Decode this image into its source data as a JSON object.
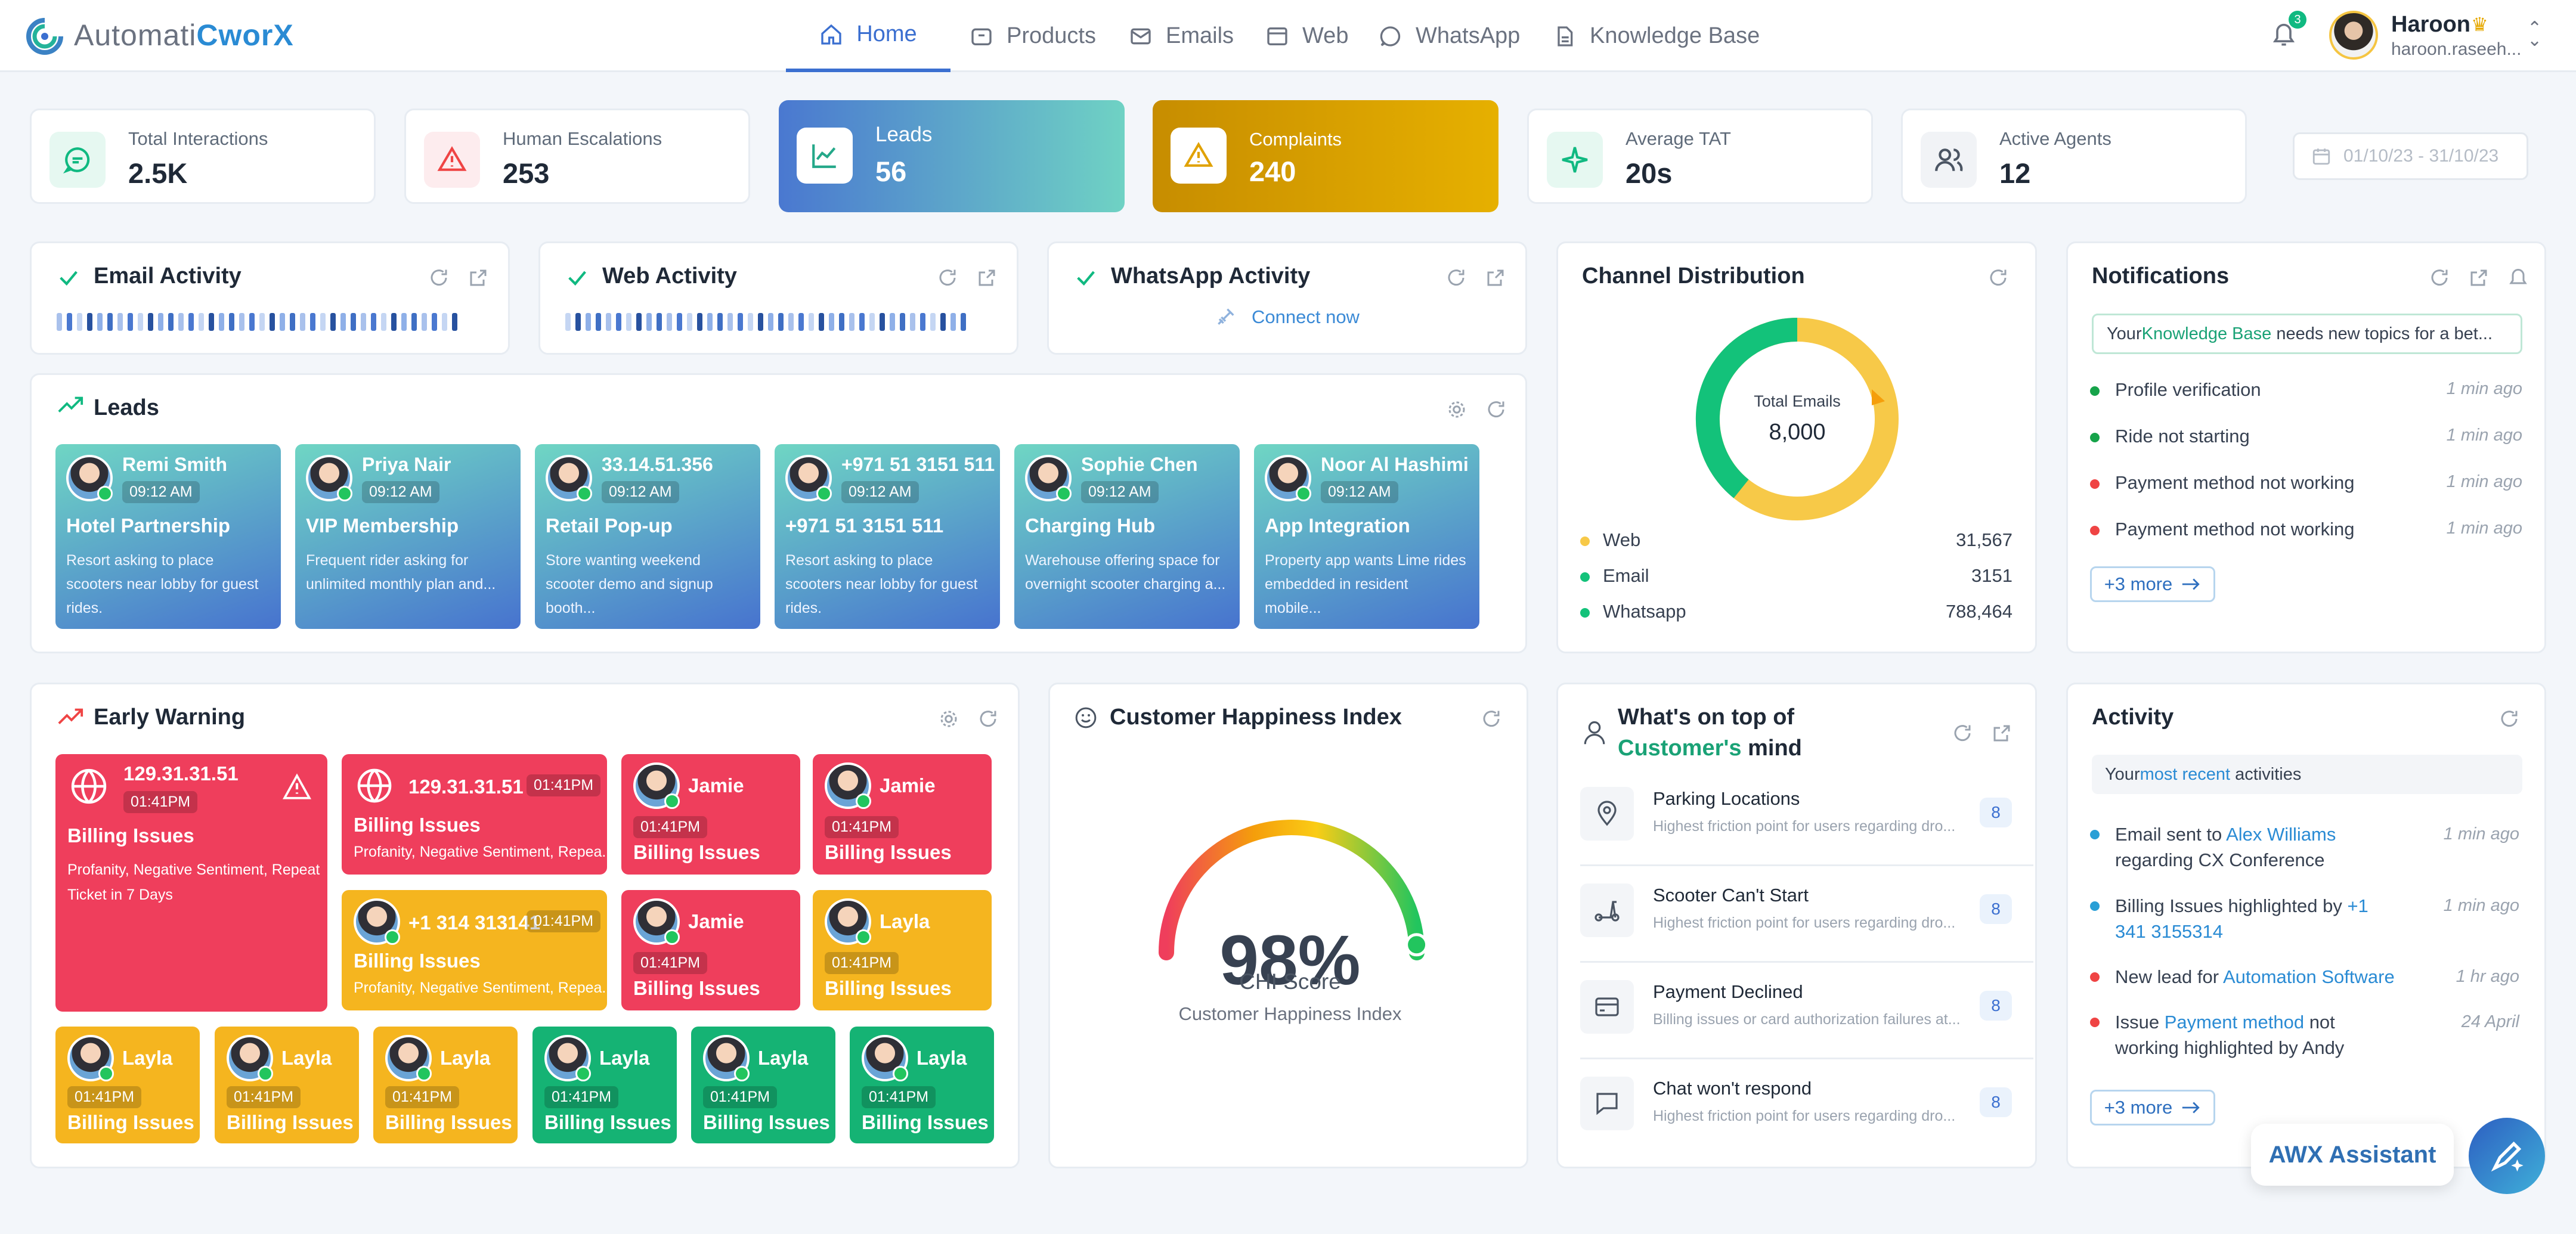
{
  "app": {
    "logo_text_1": "Automati",
    "logo_text_2": "C",
    "logo_text_3": "worX"
  },
  "nav": {
    "items": [
      {
        "label": "Home",
        "icon": "home-icon"
      },
      {
        "label": "Products",
        "icon": "box-icon"
      },
      {
        "label": "Emails",
        "icon": "mail-icon"
      },
      {
        "label": "Web",
        "icon": "browser-icon"
      },
      {
        "label": "WhatsApp",
        "icon": "whatsapp-icon"
      },
      {
        "label": "Knowledge Base",
        "icon": "document-icon"
      }
    ],
    "active": "Home"
  },
  "user": {
    "name": "Haroon",
    "email": "haroon.raseeh...",
    "notification_count": "3"
  },
  "kpis": [
    {
      "label": "Total Interactions",
      "value": "2.5K",
      "icon": "chat-icon"
    },
    {
      "label": "Human Escalations",
      "value": "253",
      "icon": "warning-icon"
    },
    {
      "label": "Leads",
      "value": "56",
      "icon": "trend-icon"
    },
    {
      "label": "Complaints",
      "value": "240",
      "icon": "warning-icon"
    },
    {
      "label": "Average TAT",
      "value": "20s",
      "icon": "sparkle-icon"
    },
    {
      "label": "Active Agents",
      "value": "12",
      "icon": "users-icon"
    }
  ],
  "date_range": "01/10/23 - 31/10/23",
  "activity_cards": {
    "email": {
      "title": "Email Activity"
    },
    "web": {
      "title": "Web Activity"
    },
    "whatsapp": {
      "title": "WhatsApp Activity",
      "connect_label": "Connect now"
    }
  },
  "leads": {
    "title": "Leads",
    "items": [
      {
        "name": "Remi Smith",
        "time": "09:12 AM",
        "title": "Hotel Partnership",
        "desc": "Resort asking to place scooters near lobby for guest rides."
      },
      {
        "name": "Priya Nair",
        "time": "09:12 AM",
        "title": "VIP Membership",
        "desc": "Frequent rider asking for unlimited monthly plan and..."
      },
      {
        "name": "33.14.51.356",
        "time": "09:12 AM",
        "title": "Retail Pop-up",
        "desc": "Store wanting weekend scooter demo and signup booth..."
      },
      {
        "name": "+971 51 3151 511",
        "time": "09:12 AM",
        "title": "+971 51 3151 511",
        "desc": "Resort asking to place scooters near lobby for guest rides."
      },
      {
        "name": "Sophie Chen",
        "time": "09:12 AM",
        "title": "Charging Hub",
        "desc": "Warehouse offering space for overnight scooter charging a..."
      },
      {
        "name": "Noor Al Hashimi",
        "time": "09:12 AM",
        "title": "App Integration",
        "desc": "Property app wants Lime rides embedded in resident mobile..."
      }
    ]
  },
  "channel": {
    "title": "Channel Distribution",
    "center_label": "Total Emails",
    "center_value": "8,000",
    "rows": [
      {
        "label": "Web",
        "value": "31,567",
        "color": "#f7c948"
      },
      {
        "label": "Email",
        "value": "3151",
        "color": "#13c27a"
      },
      {
        "label": "Whatsapp",
        "value": "788,464",
        "color": "#13c27a"
      }
    ]
  },
  "notifications": {
    "title": "Notifications",
    "banner_1": "Your ",
    "banner_link": "Knowledge Base",
    "banner_2": " needs new topics for a bet...",
    "items": [
      {
        "label": "Profile verification",
        "time": "1 min ago",
        "color": "#16a34a"
      },
      {
        "label": "Ride not starting",
        "time": "1 min ago",
        "color": "#16a34a"
      },
      {
        "label": "Payment method not working",
        "time": "1 min ago",
        "color": "#ef4444"
      },
      {
        "label": "Payment method not working",
        "time": "1 min ago",
        "color": "#ef4444"
      }
    ],
    "more": "+3 more"
  },
  "early_warning": {
    "title": "Early Warning",
    "big": {
      "title": "129.31.31.51",
      "time": "01:41PM",
      "issue": "Billing Issues",
      "desc_1": "Profanity, Negative Sentiment, Repeat",
      "desc_2": "Ticket in 7 Days"
    },
    "wide_1": {
      "title": "129.31.31.51",
      "time": "01:41PM",
      "issue": "Billing Issues",
      "desc": "Profanity, Negative Sentiment, Repea..."
    },
    "wide_2": {
      "title": "+1 314 313141",
      "time": "01:41PM",
      "issue": "Billing Issues",
      "desc": "Profanity, Negative Sentiment, Repea..."
    },
    "small": [
      {
        "name": "Jamie",
        "time": "01:41PM",
        "issue": "Billing Issues"
      },
      {
        "name": "Jamie",
        "time": "01:41PM",
        "issue": "Billing Issues"
      },
      {
        "name": "Jamie",
        "time": "01:41PM",
        "issue": "Billing Issues"
      },
      {
        "name": "Layla",
        "time": "01:41PM",
        "issue": "Billing Issues"
      }
    ],
    "bottom": [
      {
        "name": "Layla",
        "time": "01:41PM",
        "issue": "Billing Issues"
      },
      {
        "name": "Layla",
        "time": "01:41PM",
        "issue": "Billing Issues"
      },
      {
        "name": "Layla",
        "time": "01:41PM",
        "issue": "Billing Issues"
      },
      {
        "name": "Layla",
        "time": "01:41PM",
        "issue": "Billing Issues"
      },
      {
        "name": "Layla",
        "time": "01:41PM",
        "issue": "Billing Issues"
      },
      {
        "name": "Layla",
        "time": "01:41PM",
        "issue": "Billing Issues"
      }
    ]
  },
  "chi": {
    "title": "Customer Happiness Index",
    "value": "98%",
    "score_label": "CHI Score",
    "caption": "Customer Happiness Index",
    "level": 0.98
  },
  "mind": {
    "title_1": "What's on top of",
    "title_2": "Customer's",
    "title_3": " mind",
    "items": [
      {
        "title": "Parking Locations",
        "desc": "Highest friction point for users regarding dro...",
        "count": "8",
        "icon": "location-pin-icon"
      },
      {
        "title": "Scooter Can't Start",
        "desc": "Highest friction point for users regarding dro...",
        "count": "8",
        "icon": "scooter-icon"
      },
      {
        "title": "Payment Declined",
        "desc": "Billing issues or card authorization failures at...",
        "count": "8",
        "icon": "credit-card-icon"
      },
      {
        "title": "Chat won't respond",
        "desc": "Highest friction point for users regarding dro...",
        "count": "8",
        "icon": "chat-bubble-icon"
      }
    ]
  },
  "activity": {
    "title": "Activity",
    "banner_1": "Your ",
    "banner_link": "most recent",
    "banner_2": " activities",
    "items": [
      {
        "t1": "Email sent to ",
        "link": "Alex Williams",
        "t2": " regarding CX Conference",
        "time": "1 min ago"
      },
      {
        "t1": "Billing Issues highlighted by ",
        "link": "+1 341 3155314",
        "t2": "",
        "time": "1 min ago"
      },
      {
        "t1": "New lead for ",
        "link": "Automation Software",
        "t2": "",
        "time": "1 hr ago"
      },
      {
        "t1": "Issue ",
        "link": "Payment method",
        "t2": " not working highlighted by Andy",
        "time": "24 April"
      }
    ],
    "more": "+3 more"
  },
  "assistant": {
    "label": "AWX Assistant"
  }
}
